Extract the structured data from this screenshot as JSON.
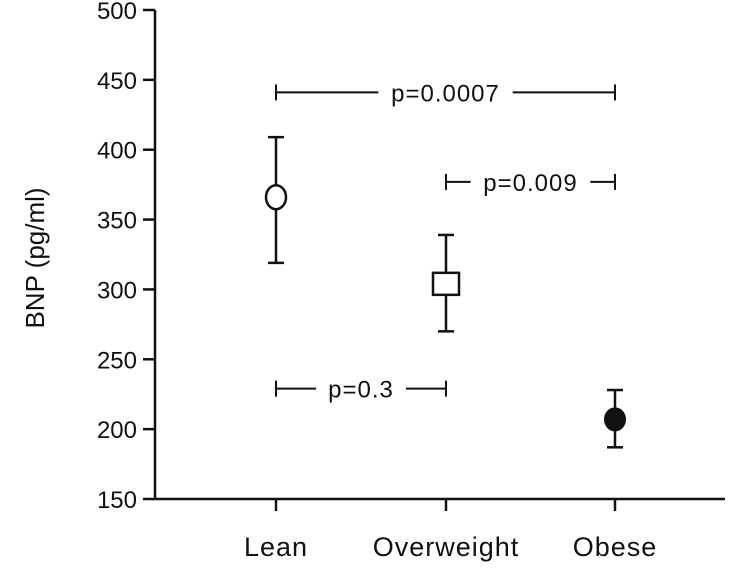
{
  "chart_data": {
    "type": "scatter",
    "title": "",
    "xlabel": "",
    "ylabel": "BNP (pg/ml)",
    "ylim": [
      150,
      500
    ],
    "yticks": [
      150,
      200,
      250,
      300,
      350,
      400,
      450,
      500
    ],
    "grid": false,
    "categories": [
      "Lean",
      "Overweight",
      "Obese"
    ],
    "series": [
      {
        "name": "BNP",
        "values": [
          366,
          304,
          207
        ],
        "error_low": [
          319,
          270,
          187
        ],
        "error_high": [
          409,
          339,
          228
        ],
        "markers": [
          "open-circle",
          "open-square",
          "filled-circle"
        ]
      }
    ],
    "annotations": [
      {
        "label": "p=0.0007",
        "from": "Lean",
        "to": "Obese",
        "y": 441
      },
      {
        "label": "p=0.009",
        "from": "Overweight",
        "to": "Obese",
        "y": 377
      },
      {
        "label": "p=0.3",
        "from": "Lean",
        "to": "Overweight",
        "y": 229
      }
    ]
  }
}
